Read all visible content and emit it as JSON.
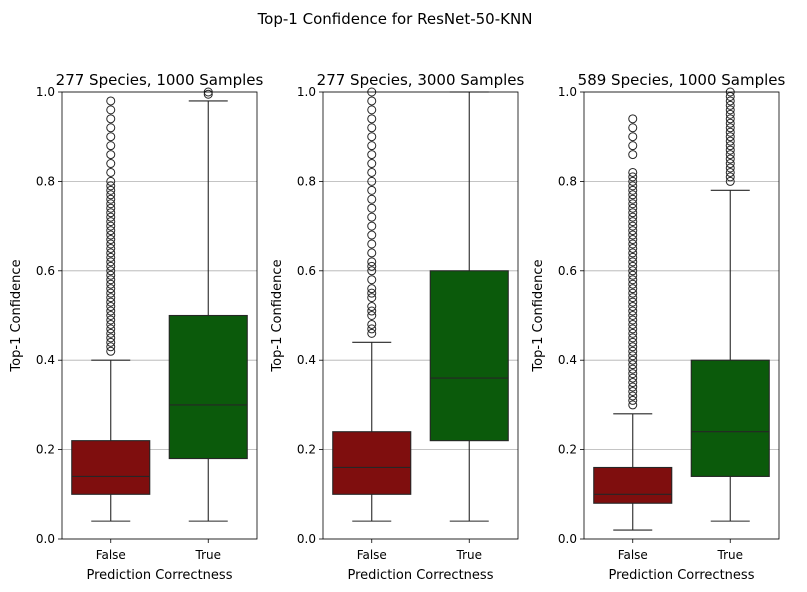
{
  "suptitle": "Top-1 Confidence for ResNet-50-KNN",
  "chart_data": [
    {
      "type": "box",
      "title": "277 Species, 1000 Samples",
      "xlabel": "Prediction Correctness",
      "ylabel": "Top-1 Confidence",
      "ylim": [
        0,
        1
      ],
      "yticks": [
        "0.0",
        "0.2",
        "0.4",
        "0.6",
        "0.8",
        "1.0"
      ],
      "grid": "y",
      "categories": [
        "False",
        "True"
      ],
      "boxes": [
        {
          "category": "False",
          "color": "#7f0e0e",
          "whisker_low": 0.04,
          "q1": 0.1,
          "median": 0.14,
          "q3": 0.22,
          "whisker_high": 0.4,
          "outliers": [
            0.42,
            0.43,
            0.44,
            0.45,
            0.46,
            0.47,
            0.48,
            0.49,
            0.5,
            0.51,
            0.52,
            0.53,
            0.54,
            0.55,
            0.56,
            0.57,
            0.58,
            0.59,
            0.6,
            0.61,
            0.62,
            0.63,
            0.64,
            0.65,
            0.66,
            0.67,
            0.68,
            0.69,
            0.7,
            0.71,
            0.72,
            0.73,
            0.74,
            0.75,
            0.76,
            0.77,
            0.78,
            0.79,
            0.8,
            0.82,
            0.84,
            0.86,
            0.88,
            0.9,
            0.92,
            0.94,
            0.96,
            0.98
          ]
        },
        {
          "category": "True",
          "color": "#0b5a0b",
          "whisker_low": 0.04,
          "q1": 0.18,
          "median": 0.3,
          "q3": 0.5,
          "whisker_high": 0.98,
          "outliers": [
            0.995,
            1.0
          ]
        }
      ]
    },
    {
      "type": "box",
      "title": "277 Species, 3000 Samples",
      "xlabel": "Prediction Correctness",
      "ylabel": "Top-1 Confidence",
      "ylim": [
        0,
        1
      ],
      "yticks": [
        "0.0",
        "0.2",
        "0.4",
        "0.6",
        "0.8",
        "1.0"
      ],
      "grid": "y",
      "categories": [
        "False",
        "True"
      ],
      "boxes": [
        {
          "category": "False",
          "color": "#7f0e0e",
          "whisker_low": 0.04,
          "q1": 0.1,
          "median": 0.16,
          "q3": 0.24,
          "whisker_high": 0.44,
          "outliers": [
            0.46,
            0.47,
            0.48,
            0.5,
            0.51,
            0.52,
            0.54,
            0.55,
            0.56,
            0.58,
            0.6,
            0.61,
            0.62,
            0.64,
            0.66,
            0.68,
            0.7,
            0.72,
            0.74,
            0.76,
            0.78,
            0.8,
            0.82,
            0.84,
            0.86,
            0.88,
            0.9,
            0.92,
            0.94,
            0.96,
            0.98,
            1.0
          ]
        },
        {
          "category": "True",
          "color": "#0b5a0b",
          "whisker_low": 0.04,
          "q1": 0.22,
          "median": 0.36,
          "q3": 0.6,
          "whisker_high": 1.0,
          "outliers": []
        }
      ]
    },
    {
      "type": "box",
      "title": "589 Species, 1000 Samples",
      "xlabel": "Prediction Correctness",
      "ylabel": "Top-1 Confidence",
      "ylim": [
        0,
        1
      ],
      "yticks": [
        "0.0",
        "0.2",
        "0.4",
        "0.6",
        "0.8",
        "1.0"
      ],
      "grid": "y",
      "categories": [
        "False",
        "True"
      ],
      "boxes": [
        {
          "category": "False",
          "color": "#7f0e0e",
          "whisker_low": 0.02,
          "q1": 0.08,
          "median": 0.1,
          "q3": 0.16,
          "whisker_high": 0.28,
          "outliers": [
            0.3,
            0.31,
            0.32,
            0.33,
            0.34,
            0.35,
            0.36,
            0.37,
            0.38,
            0.39,
            0.4,
            0.41,
            0.42,
            0.43,
            0.44,
            0.45,
            0.46,
            0.47,
            0.48,
            0.49,
            0.5,
            0.51,
            0.52,
            0.53,
            0.54,
            0.55,
            0.56,
            0.57,
            0.58,
            0.59,
            0.6,
            0.61,
            0.62,
            0.63,
            0.64,
            0.65,
            0.66,
            0.67,
            0.68,
            0.69,
            0.7,
            0.71,
            0.72,
            0.73,
            0.74,
            0.75,
            0.76,
            0.77,
            0.78,
            0.79,
            0.8,
            0.81,
            0.82,
            0.86,
            0.88,
            0.9,
            0.92,
            0.94
          ]
        },
        {
          "category": "True",
          "color": "#0b5a0b",
          "whisker_low": 0.04,
          "q1": 0.14,
          "median": 0.24,
          "q3": 0.4,
          "whisker_high": 0.78,
          "outliers": [
            0.8,
            0.81,
            0.82,
            0.83,
            0.84,
            0.85,
            0.86,
            0.87,
            0.88,
            0.89,
            0.9,
            0.91,
            0.92,
            0.93,
            0.94,
            0.95,
            0.96,
            0.97,
            0.98,
            0.99,
            1.0
          ]
        }
      ]
    }
  ]
}
